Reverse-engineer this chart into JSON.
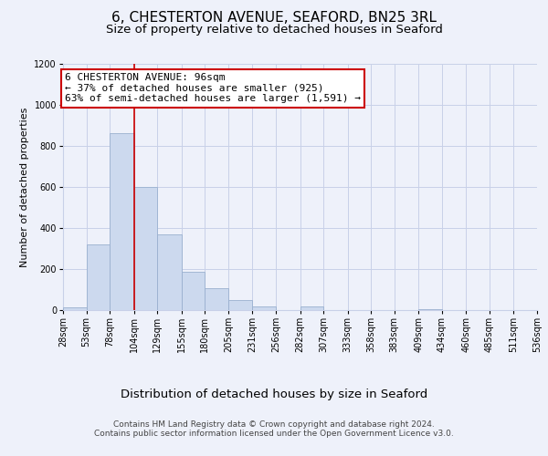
{
  "title": "6, CHESTERTON AVENUE, SEAFORD, BN25 3RL",
  "subtitle": "Size of property relative to detached houses in Seaford",
  "xlabel": "Distribution of detached houses by size in Seaford",
  "ylabel": "Number of detached properties",
  "bar_edges": [
    28,
    53,
    78,
    104,
    129,
    155,
    180,
    205,
    231,
    256,
    282,
    307,
    333,
    358,
    383,
    409,
    434,
    460,
    485,
    511,
    536
  ],
  "bar_heights": [
    12,
    320,
    860,
    600,
    370,
    185,
    105,
    47,
    20,
    0,
    20,
    0,
    0,
    0,
    0,
    5,
    0,
    0,
    0,
    0
  ],
  "bar_color": "#ccd9ee",
  "bar_edge_color": "#9ab0cf",
  "vline_x": 104,
  "vline_color": "#cc0000",
  "annotation_text": "6 CHESTERTON AVENUE: 96sqm\n← 37% of detached houses are smaller (925)\n63% of semi-detached houses are larger (1,591) →",
  "annotation_box_edge_color": "#cc0000",
  "annotation_box_face_color": "white",
  "ylim": [
    0,
    1200
  ],
  "yticks": [
    0,
    200,
    400,
    600,
    800,
    1000,
    1200
  ],
  "tick_labels": [
    "28sqm",
    "53sqm",
    "78sqm",
    "104sqm",
    "129sqm",
    "155sqm",
    "180sqm",
    "205sqm",
    "231sqm",
    "256sqm",
    "282sqm",
    "307sqm",
    "333sqm",
    "358sqm",
    "383sqm",
    "409sqm",
    "434sqm",
    "460sqm",
    "485sqm",
    "511sqm",
    "536sqm"
  ],
  "footer_text": "Contains HM Land Registry data © Crown copyright and database right 2024.\nContains public sector information licensed under the Open Government Licence v3.0.",
  "bg_color": "#eef1fa",
  "grid_color": "#c8d0e8",
  "title_fontsize": 11,
  "subtitle_fontsize": 9.5,
  "xlabel_fontsize": 9.5,
  "ylabel_fontsize": 8,
  "tick_fontsize": 7,
  "footer_fontsize": 6.5,
  "annotation_fontsize": 8
}
